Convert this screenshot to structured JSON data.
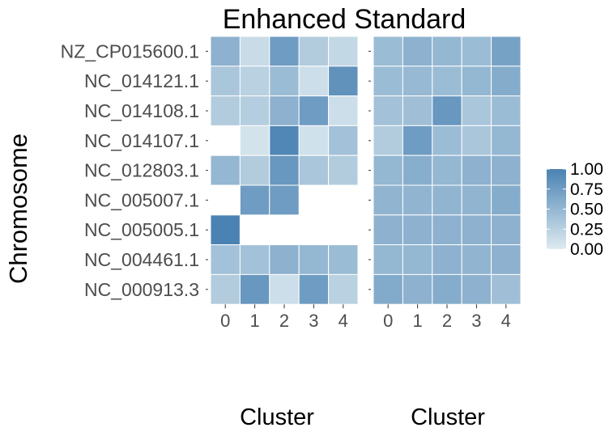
{
  "chart_data": {
    "type": "heatmap",
    "title": "Enhanced Standard",
    "ylabel": "Chromosome",
    "xlabel": "Cluster",
    "rows": [
      "NZ_CP015600.1",
      "NC_014121.1",
      "NC_014108.1",
      "NC_014107.1",
      "NC_012803.1",
      "NC_005007.1",
      "NC_005005.1",
      "NC_004461.1",
      "NC_000913.3"
    ],
    "columns": [
      "0",
      "1",
      "2",
      "3",
      "4"
    ],
    "color_low": "#deebf0",
    "color_high": "#4a82b3",
    "legend": {
      "ticks": [
        "1.00",
        "0.75",
        "0.50",
        "0.25",
        "0.00"
      ],
      "min": 0,
      "max": 1
    },
    "panels": [
      {
        "name": "left",
        "values": [
          [
            0.55,
            0.15,
            0.75,
            0.3,
            0.18
          ],
          [
            0.35,
            0.25,
            0.45,
            0.12,
            0.85
          ],
          [
            0.3,
            0.28,
            0.55,
            0.75,
            0.12
          ],
          [
            null,
            0.08,
            0.95,
            0.1,
            0.4
          ],
          [
            0.5,
            0.3,
            0.8,
            0.35,
            0.3
          ],
          [
            null,
            0.75,
            0.75,
            null,
            null
          ],
          [
            1.0,
            null,
            null,
            null,
            null
          ],
          [
            0.4,
            0.4,
            0.55,
            0.5,
            0.45
          ],
          [
            0.3,
            0.8,
            0.12,
            0.75,
            0.25
          ]
        ]
      },
      {
        "name": "right",
        "values": [
          [
            0.45,
            0.55,
            0.5,
            0.45,
            0.7
          ],
          [
            0.45,
            0.48,
            0.45,
            0.5,
            0.6
          ],
          [
            0.4,
            0.42,
            0.8,
            0.35,
            0.45
          ],
          [
            0.3,
            0.75,
            0.45,
            0.35,
            0.5
          ],
          [
            0.5,
            0.58,
            0.5,
            0.55,
            0.55
          ],
          [
            0.52,
            0.52,
            0.52,
            0.52,
            0.6
          ],
          [
            0.55,
            0.55,
            0.55,
            0.55,
            0.55
          ],
          [
            0.5,
            0.5,
            0.55,
            0.52,
            0.55
          ],
          [
            0.62,
            0.55,
            0.6,
            0.55,
            0.42
          ]
        ]
      }
    ]
  }
}
